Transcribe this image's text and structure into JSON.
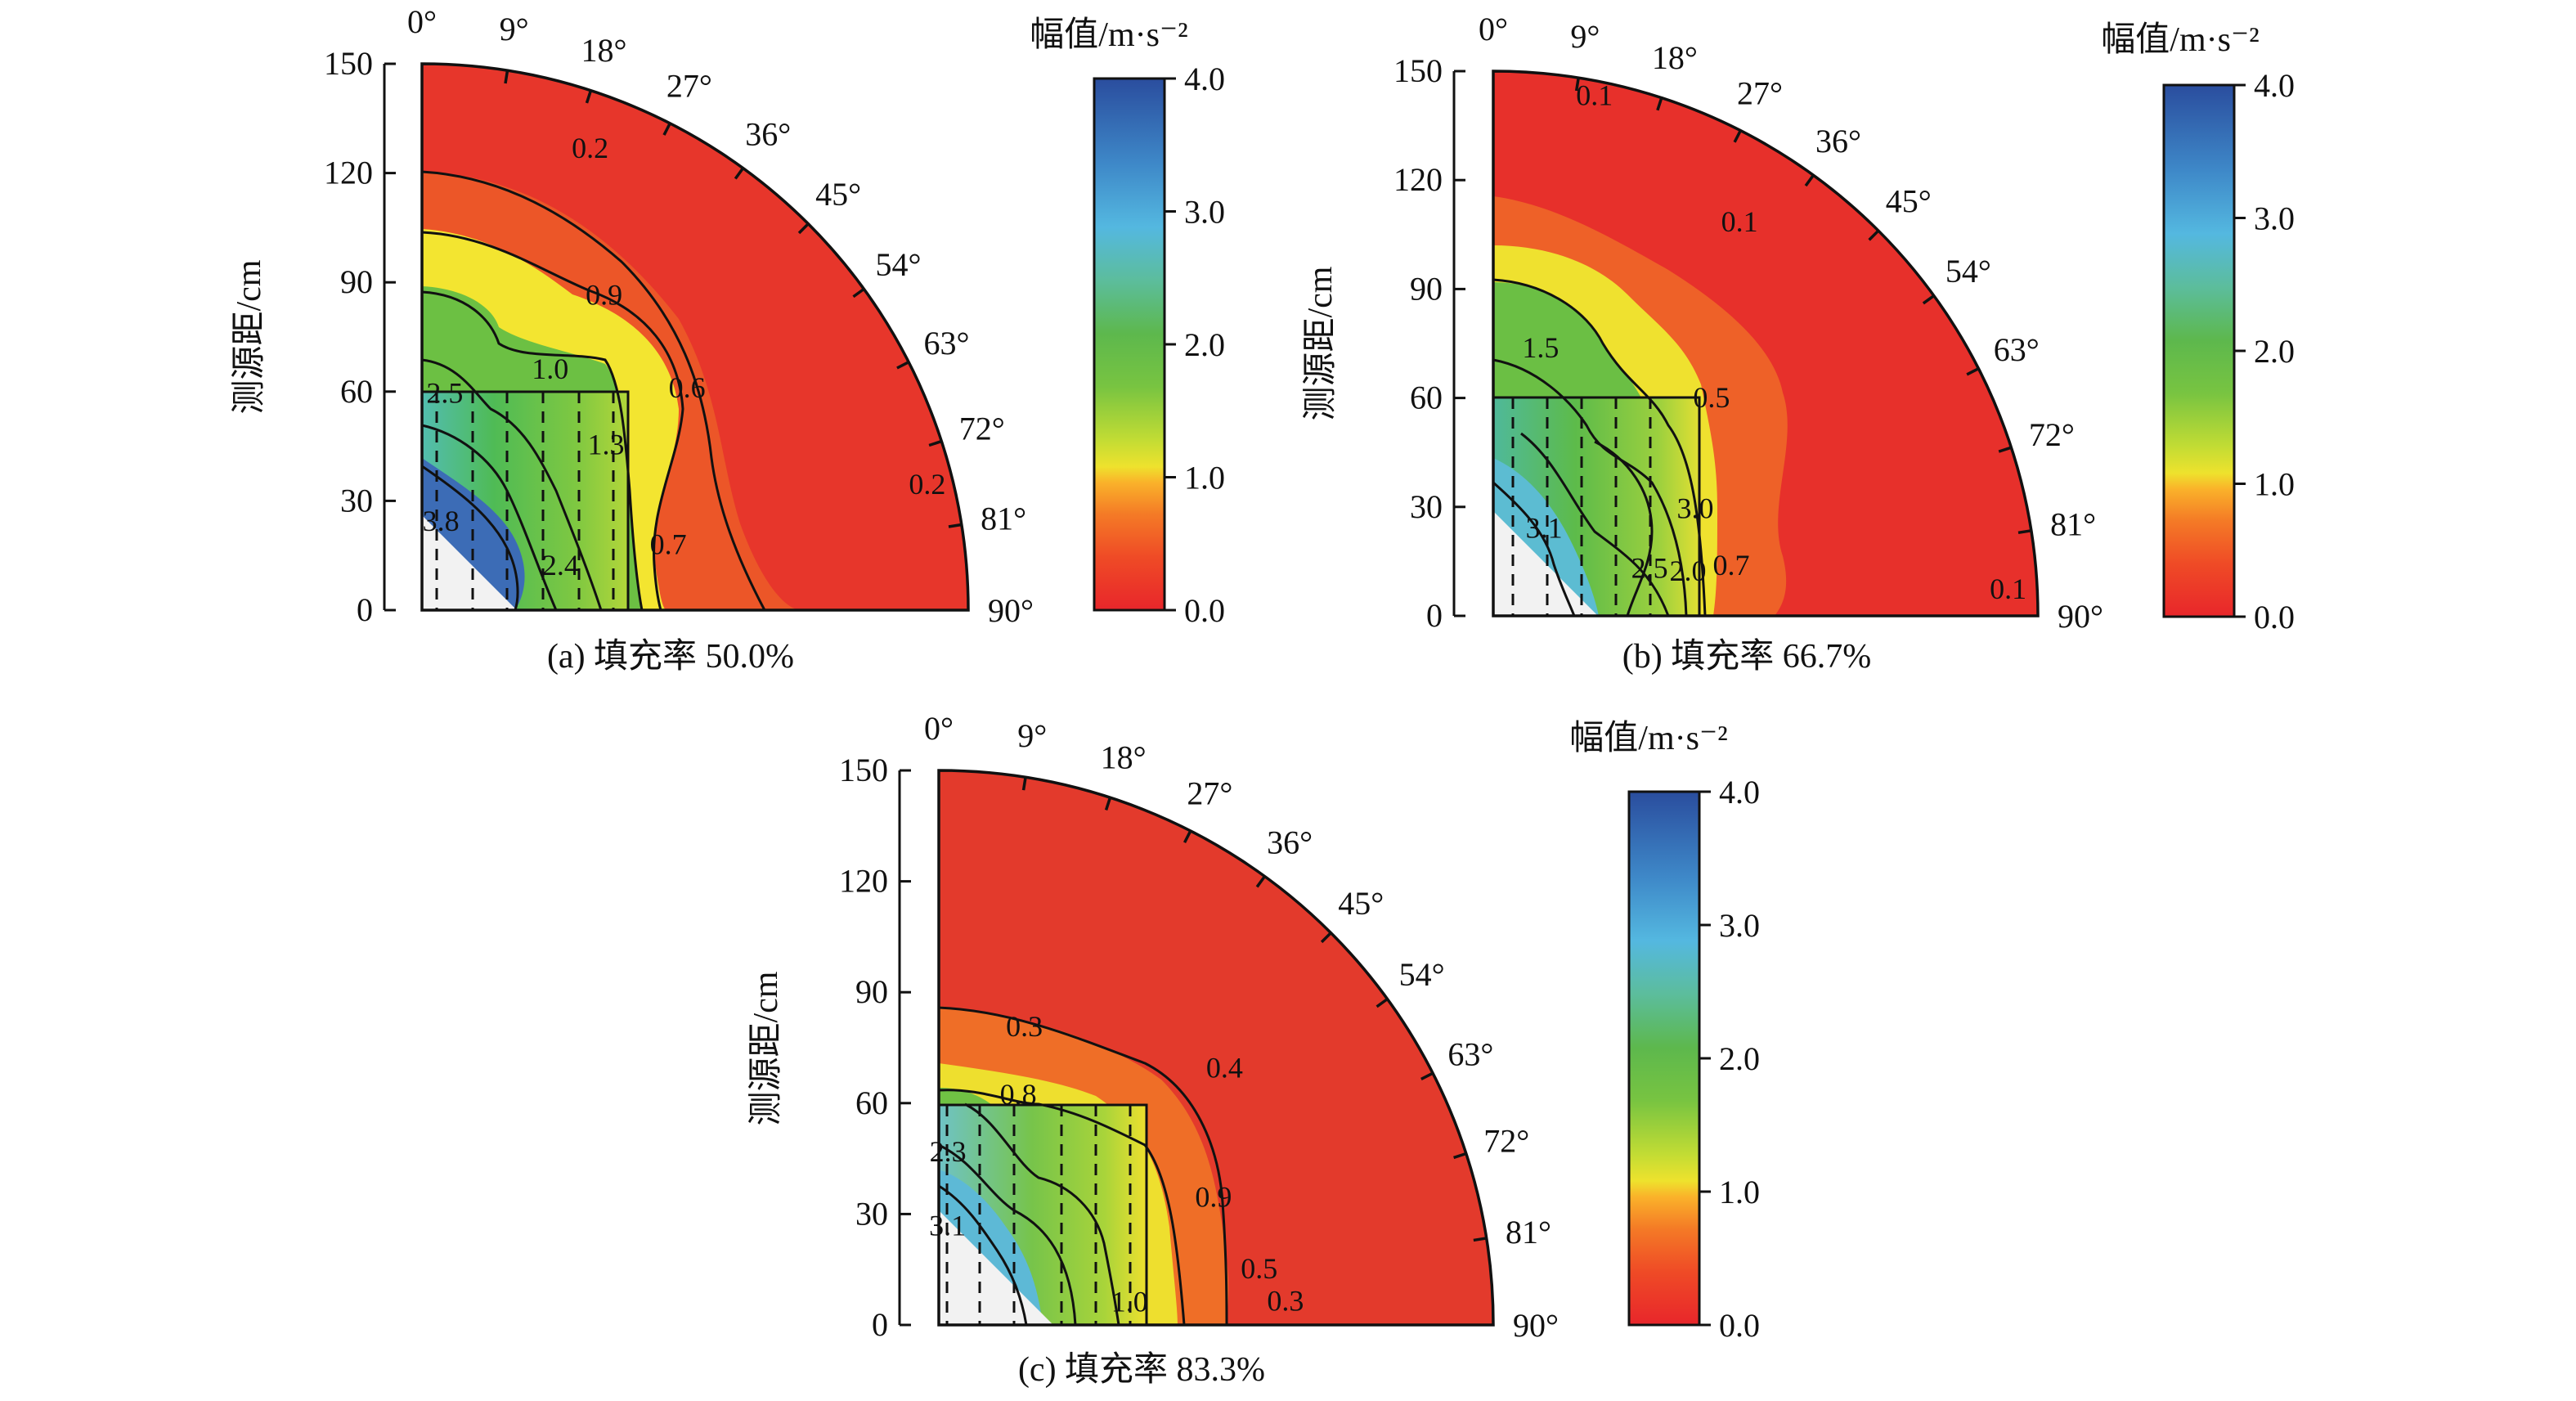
{
  "chart_data": [
    {
      "type": "heatmap",
      "panel": "a",
      "caption": "(a) 填充率 50.0%",
      "ylabel": "测源距/cm",
      "yticks": [
        "0",
        "30",
        "60",
        "90",
        "120",
        "150"
      ],
      "ylim": [
        0,
        150
      ],
      "angle_ticks": [
        "0°",
        "9°",
        "18°",
        "27°",
        "36°",
        "45°",
        "54°",
        "63°",
        "72°",
        "81°",
        "90°"
      ],
      "colorbar": {
        "title": "幅值/m·s⁻²",
        "ticks": [
          "0.0",
          "1.0",
          "2.0",
          "3.0",
          "4.0"
        ],
        "range": [
          0,
          4
        ]
      },
      "fill_box_cm": 60,
      "dashed_columns": 6,
      "colored_radius_cm": 150,
      "contours": [
        {
          "level": 0.2,
          "label": "0.2",
          "r": 135,
          "theta": 20
        },
        {
          "level": 0.9,
          "label": "0.9",
          "r": 100,
          "theta": 30
        },
        {
          "level": 0.6,
          "label": "0.6",
          "r": 95,
          "theta": 50
        },
        {
          "level": 1.0,
          "label": "1.0",
          "r": 75,
          "theta": 28
        },
        {
          "level": 1.3,
          "label": "1.3",
          "r": 68,
          "theta": 48
        },
        {
          "level": 2.5,
          "label": "2.5",
          "r": 60,
          "theta": 6
        },
        {
          "level": 3.8,
          "label": "3.8",
          "r": 25,
          "theta": 12
        },
        {
          "level": 0.7,
          "label": "0.7",
          "r": 70,
          "theta": 75
        },
        {
          "level": 2.4,
          "label": "2.4",
          "r": 40,
          "theta": 72
        },
        {
          "level": 0.2,
          "label": "0.2",
          "r": 143,
          "theta": 76
        }
      ]
    },
    {
      "type": "heatmap",
      "panel": "b",
      "caption": "(b) 填充率 66.7%",
      "ylabel": "测源距/cm",
      "yticks": [
        "0",
        "30",
        "60",
        "90",
        "120",
        "150"
      ],
      "ylim": [
        0,
        150
      ],
      "angle_ticks": [
        "0°",
        "9°",
        "18°",
        "27°",
        "36°",
        "45°",
        "54°",
        "63°",
        "72°",
        "81°",
        "90°"
      ],
      "colorbar": {
        "title": "幅值/m·s⁻²",
        "ticks": [
          "0.0",
          "1.0",
          "2.0",
          "3.0",
          "4.0"
        ],
        "range": [
          0,
          4
        ]
      },
      "fill_box_cm": 60,
      "dashed_columns": 5,
      "colored_radius_cm": 150,
      "contours": [
        {
          "level": 0.1,
          "label": "0.1",
          "r": 146,
          "theta": 11
        },
        {
          "level": 0.1,
          "label": "0.1",
          "r": 128,
          "theta": 32
        },
        {
          "level": 1.5,
          "label": "1.5",
          "r": 75,
          "theta": 10
        },
        {
          "level": 0.5,
          "label": "0.5",
          "r": 85,
          "theta": 45
        },
        {
          "level": 3.0,
          "label": "3.0",
          "r": 63,
          "theta": 62
        },
        {
          "level": 3.1,
          "label": "3.1",
          "r": 28,
          "theta": 30
        },
        {
          "level": 0.7,
          "label": "0.7",
          "r": 67,
          "theta": 78
        },
        {
          "level": 2.5,
          "label": "2.5",
          "r": 45,
          "theta": 73
        },
        {
          "level": 2.0,
          "label": "2.0",
          "r": 55,
          "theta": 77
        },
        {
          "level": 0.1,
          "label": "0.1",
          "r": 142,
          "theta": 87
        }
      ]
    },
    {
      "type": "heatmap",
      "panel": "c",
      "caption": "(c) 填充率 83.3%",
      "ylabel": "测源距/cm",
      "yticks": [
        "0",
        "30",
        "60",
        "90",
        "120",
        "150"
      ],
      "ylim": [
        0,
        150
      ],
      "angle_ticks": [
        "0°",
        "9°",
        "18°",
        "27°",
        "36°",
        "45°",
        "54°",
        "63°",
        "72°",
        "81°",
        "90°"
      ],
      "colorbar": {
        "title": "幅值/m·s⁻²",
        "ticks": [
          "0.0",
          "1.0",
          "2.0",
          "3.0",
          "4.0"
        ],
        "range": [
          0,
          4
        ]
      },
      "fill_box_cm": 60,
      "dashed_columns": 6,
      "colored_radius_cm": 150,
      "contours": [
        {
          "level": 0.3,
          "label": "0.3",
          "r": 84,
          "theta": 16
        },
        {
          "level": 0.4,
          "label": "0.4",
          "r": 104,
          "theta": 48
        },
        {
          "level": 0.8,
          "label": "0.8",
          "r": 66,
          "theta": 19
        },
        {
          "level": 0.9,
          "label": "0.9",
          "r": 82,
          "theta": 65
        },
        {
          "level": 2.3,
          "label": "2.3",
          "r": 47,
          "theta": 3
        },
        {
          "level": 3.1,
          "label": "3.1",
          "r": 27,
          "theta": 5
        },
        {
          "level": 0.5,
          "label": "0.5",
          "r": 88,
          "theta": 80
        },
        {
          "level": 1.0,
          "label": "1.0",
          "r": 52,
          "theta": 83
        },
        {
          "level": 0.3,
          "label": "0.3",
          "r": 94,
          "theta": 86
        }
      ]
    }
  ]
}
